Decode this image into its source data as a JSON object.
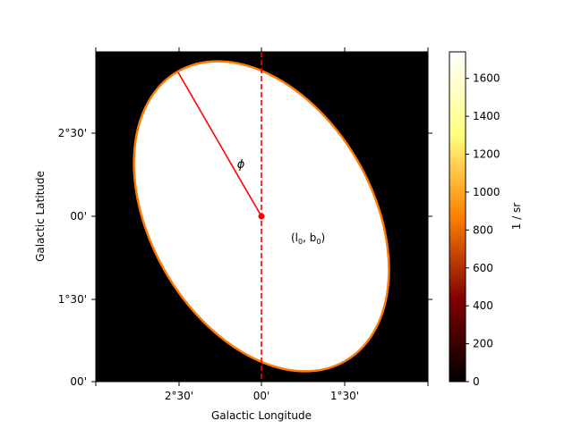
{
  "chart_data": {
    "type": "heatmap",
    "colormap": "afmhot",
    "background_value": 0,
    "xlabel": "Galactic Longitude",
    "ylabel": "Galactic Latitude",
    "x_tick_labels": [
      "2°30'",
      "00'",
      "1°30'"
    ],
    "y_tick_labels": [
      "2°30'",
      "00'",
      "1°30'",
      "00'"
    ],
    "colorbar": {
      "label": "1 / sr",
      "range": [
        0,
        1740
      ],
      "ticks": [
        0,
        200,
        400,
        600,
        800,
        1000,
        1200,
        1400,
        1600
      ],
      "tick_labels": [
        "0",
        "200",
        "400",
        "600",
        "800",
        "1000",
        "1200",
        "1400",
        "1600"
      ]
    },
    "ellipse": {
      "fill_value": 1740,
      "edge_color": "#ff0000"
    },
    "annotations": {
      "phi_label": "ϕ",
      "center_label": "(l0, b0)",
      "center_label_main": "(l",
      "center_label_sub0": "0",
      "center_label_mid": ", b",
      "center_label_sub1": "0",
      "center_label_end": ")"
    },
    "colors": {
      "annotation_red": "#ff0000",
      "outside": "#000000",
      "ellipse_fill": "#ffffff"
    }
  }
}
